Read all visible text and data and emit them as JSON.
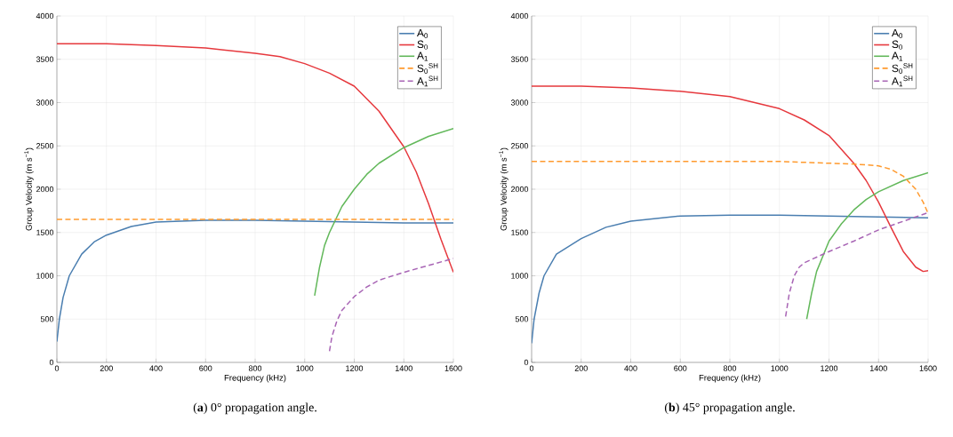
{
  "chart_data": [
    {
      "type": "line",
      "xlabel": "Frequency (kHz)",
      "ylabel": "Group Velocity (m s$^{−1}$)",
      "xlim": [
        0,
        1600
      ],
      "ylim": [
        0,
        4000
      ],
      "xticks": [
        0,
        200,
        400,
        600,
        800,
        1000,
        1200,
        1400,
        1600
      ],
      "yticks": [
        0,
        500,
        1000,
        1500,
        2000,
        2500,
        3000,
        3500,
        4000
      ],
      "grid": true,
      "legend": "top right",
      "annotations": [
        "(**a**) 0° propagation angle."
      ],
      "series": [
        {
          "name": "A$_{0}$",
          "color": "#4a7eb0",
          "line_style": "solid",
          "x": [
            0,
            10,
            25,
            50,
            100,
            150,
            200,
            300,
            400,
            600,
            800,
            1000,
            1200,
            1400,
            1600
          ],
          "values": [
            240,
            500,
            750,
            1000,
            1250,
            1390,
            1470,
            1570,
            1620,
            1640,
            1640,
            1630,
            1620,
            1610,
            1610
          ]
        },
        {
          "name": "S$_{0}$",
          "color": "#e6383d",
          "line_style": "solid",
          "x": [
            0,
            200,
            400,
            600,
            800,
            900,
            1000,
            1100,
            1200,
            1300,
            1400,
            1450,
            1500,
            1550,
            1600
          ],
          "values": [
            3680,
            3680,
            3660,
            3630,
            3570,
            3530,
            3450,
            3340,
            3190,
            2900,
            2490,
            2200,
            1830,
            1420,
            1040
          ]
        },
        {
          "name": "A$_{1}$",
          "color": "#62b85a",
          "line_style": "solid",
          "x": [
            1040,
            1060,
            1080,
            1100,
            1125,
            1150,
            1200,
            1250,
            1300,
            1400,
            1500,
            1600
          ],
          "values": [
            770,
            1100,
            1350,
            1500,
            1650,
            1800,
            2000,
            2170,
            2300,
            2480,
            2610,
            2700
          ]
        },
        {
          "name": "S$_{0}$$^{SH}$",
          "color": "#ff9a2e",
          "line_style": "dashed",
          "x": [
            0,
            1600
          ],
          "values": [
            1650,
            1650
          ]
        },
        {
          "name": "A$_{1}$$^{SH}$",
          "color": "#a865b5",
          "line_style": "dashed",
          "x": [
            1100,
            1110,
            1130,
            1150,
            1200,
            1250,
            1300,
            1400,
            1500,
            1600
          ],
          "values": [
            130,
            300,
            480,
            600,
            760,
            870,
            950,
            1040,
            1120,
            1200
          ]
        }
      ]
    },
    {
      "type": "line",
      "xlabel": "Frequency (kHz)",
      "ylabel": "Group Velocity (m s$^{−1}$)",
      "xlim": [
        0,
        1600
      ],
      "ylim": [
        0,
        4000
      ],
      "xticks": [
        0,
        200,
        400,
        600,
        800,
        1000,
        1200,
        1400,
        1600
      ],
      "yticks": [
        0,
        500,
        1000,
        1500,
        2000,
        2500,
        3000,
        3500,
        4000
      ],
      "grid": true,
      "legend": "top right",
      "annotations": [
        "(**b**) 45° propagation angle."
      ],
      "series": [
        {
          "name": "A$_{0}$",
          "color": "#4a7eb0",
          "line_style": "solid",
          "x": [
            0,
            10,
            30,
            50,
            100,
            200,
            300,
            400,
            600,
            800,
            1000,
            1200,
            1400,
            1600
          ],
          "values": [
            220,
            500,
            800,
            1000,
            1250,
            1430,
            1560,
            1630,
            1690,
            1700,
            1700,
            1690,
            1680,
            1670
          ]
        },
        {
          "name": "S$_{0}$",
          "color": "#e6383d",
          "line_style": "solid",
          "x": [
            0,
            200,
            400,
            600,
            800,
            1000,
            1100,
            1200,
            1300,
            1350,
            1400,
            1450,
            1500,
            1550,
            1580,
            1600
          ],
          "values": [
            3190,
            3190,
            3170,
            3130,
            3070,
            2930,
            2800,
            2620,
            2300,
            2100,
            1850,
            1560,
            1280,
            1100,
            1050,
            1060
          ]
        },
        {
          "name": "A$_{1}$",
          "color": "#62b85a",
          "line_style": "solid",
          "x": [
            1110,
            1130,
            1150,
            1200,
            1250,
            1300,
            1350,
            1400,
            1500,
            1600
          ],
          "values": [
            500,
            800,
            1050,
            1400,
            1600,
            1760,
            1880,
            1970,
            2100,
            2190
          ]
        },
        {
          "name": "S$_{0}$$^{SH}$",
          "color": "#ff9a2e",
          "line_style": "dashed",
          "x": [
            0,
            800,
            1000,
            1200,
            1300,
            1400,
            1450,
            1500,
            1550,
            1580,
            1600
          ],
          "values": [
            2320,
            2320,
            2320,
            2300,
            2290,
            2270,
            2230,
            2150,
            2000,
            1850,
            1720
          ]
        },
        {
          "name": "A$_{1}$$^{SH}$",
          "color": "#a865b5",
          "line_style": "dashed",
          "x": [
            1025,
            1040,
            1060,
            1080,
            1100,
            1200,
            1300,
            1400,
            1500,
            1600
          ],
          "values": [
            530,
            800,
            1000,
            1100,
            1150,
            1280,
            1400,
            1530,
            1630,
            1730
          ]
        }
      ]
    }
  ]
}
